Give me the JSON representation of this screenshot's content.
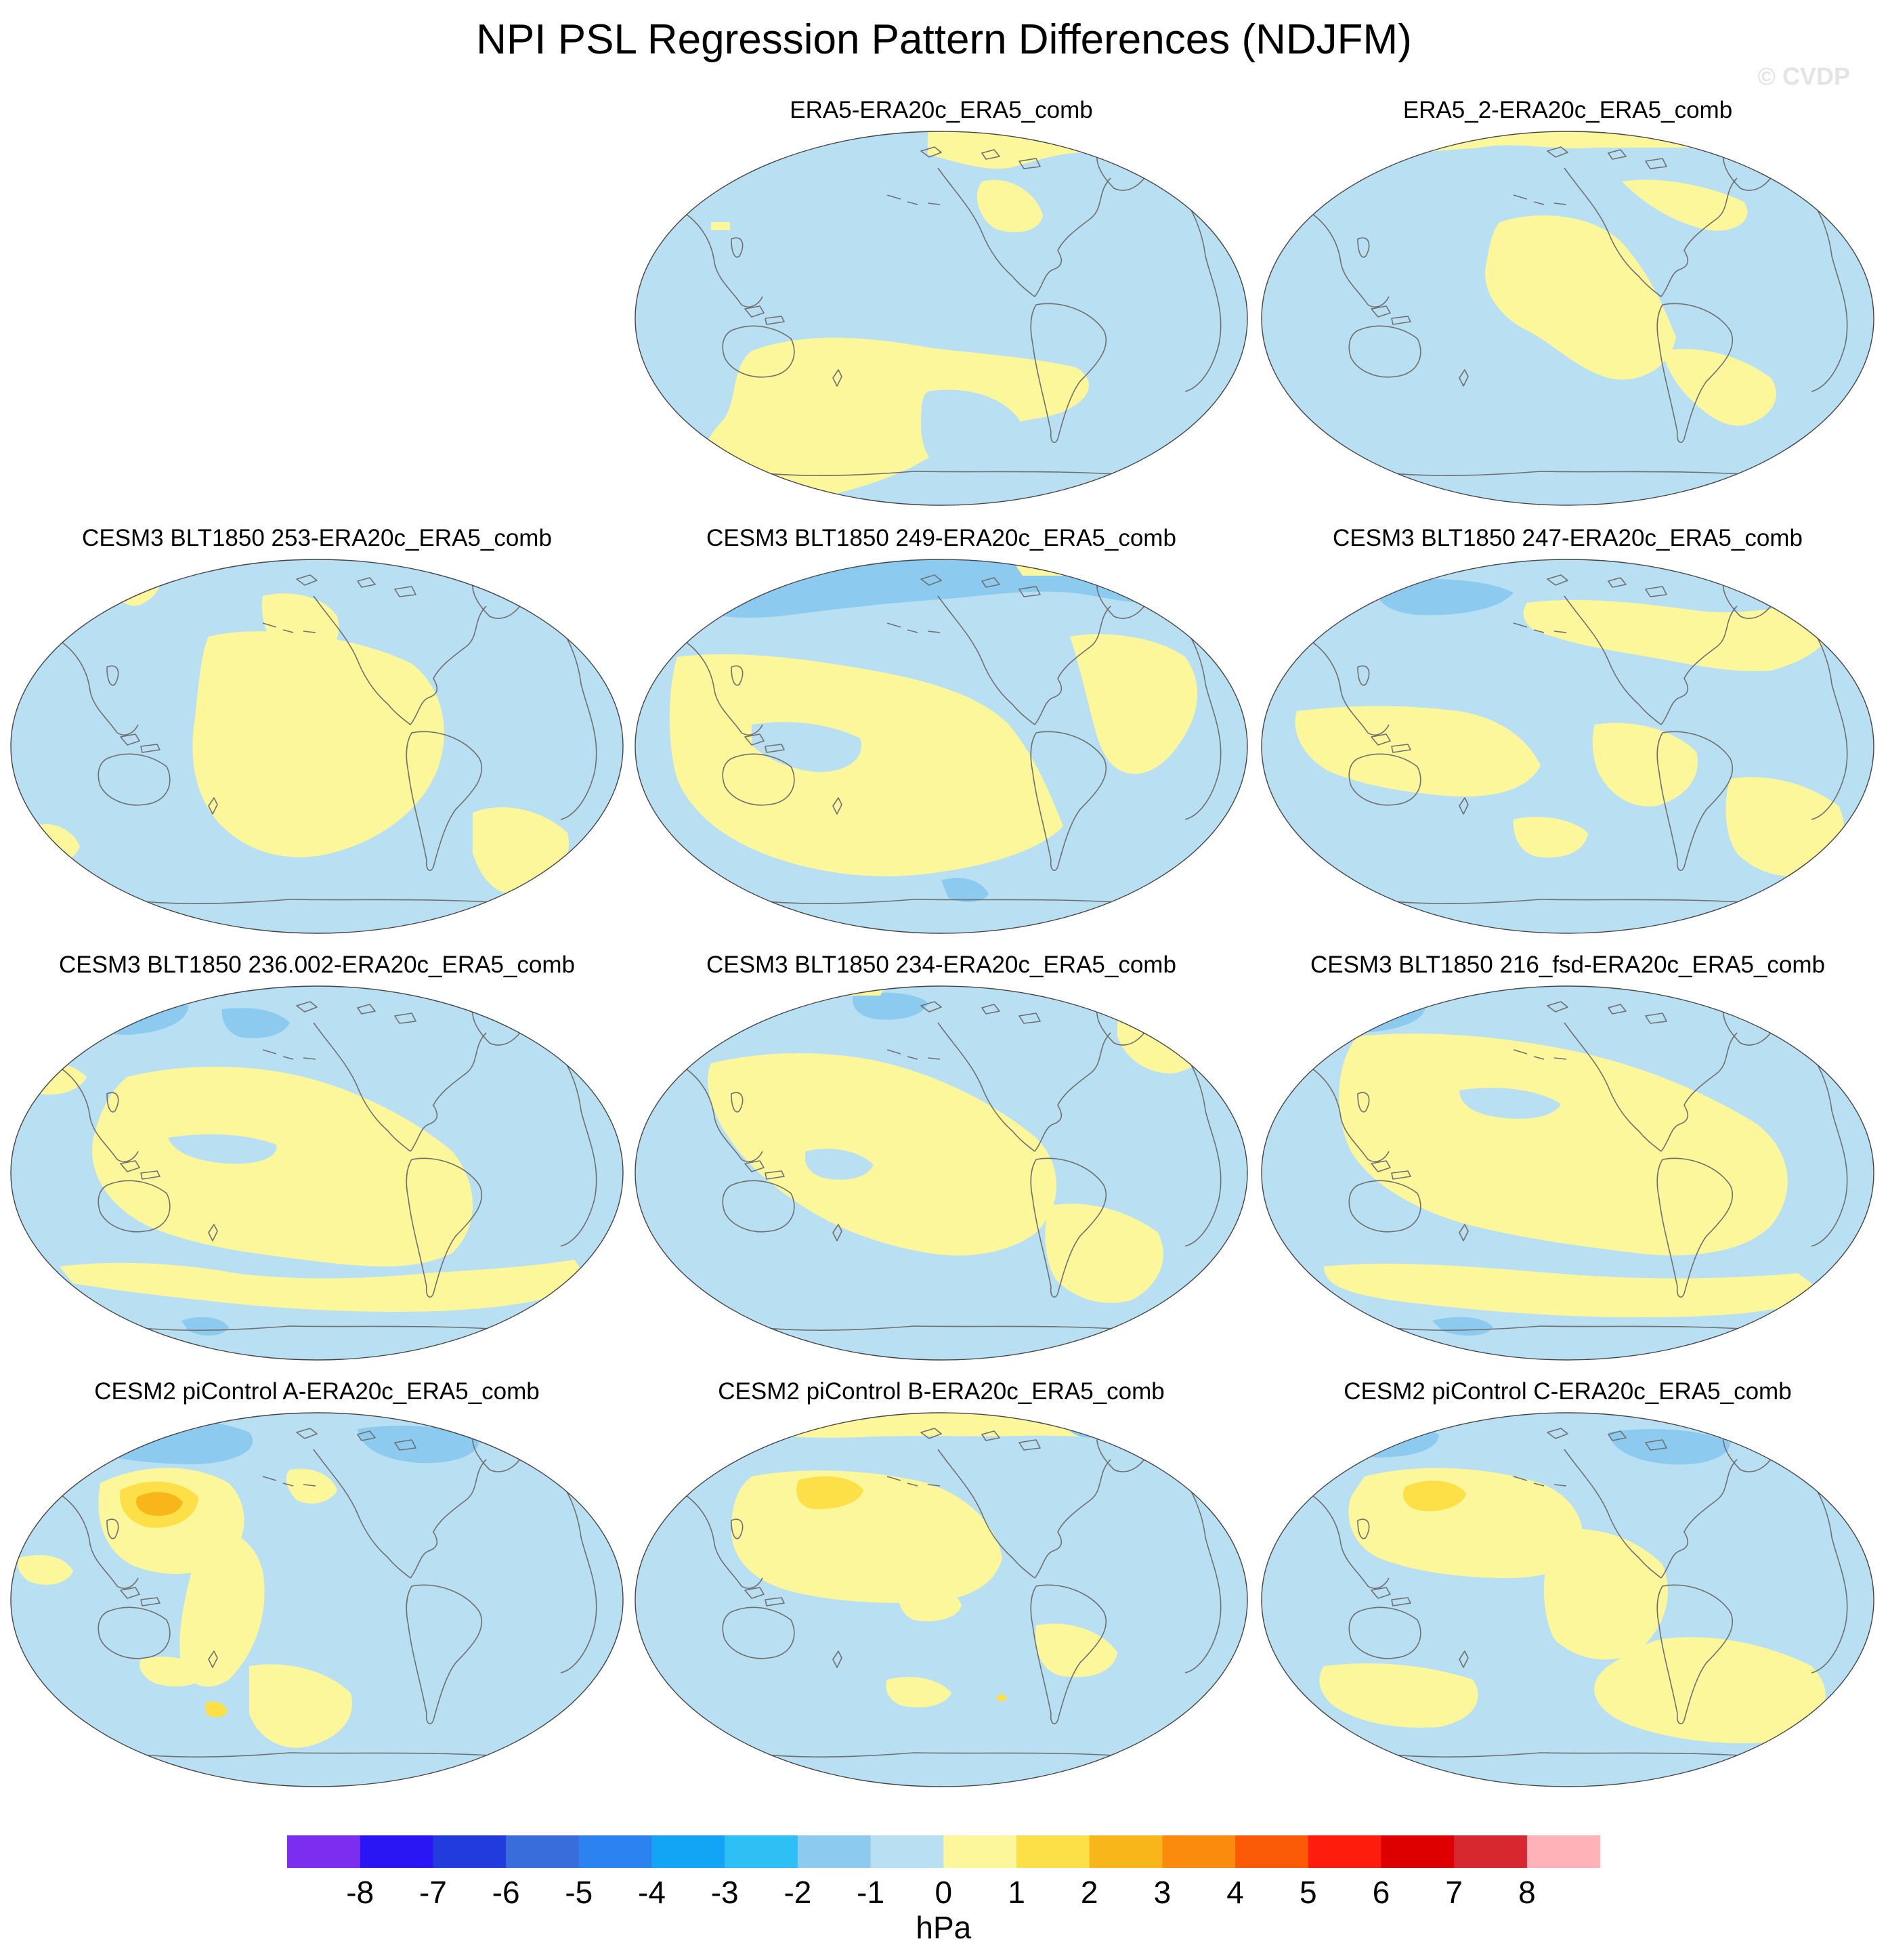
{
  "title": "NPI PSL Regression Pattern Differences (NDJFM)",
  "watermark": "© CVDP",
  "colors": {
    "neg": "#b9e0f2",
    "pos": "#fdf79c",
    "pos2": "#fde047",
    "pos3": "#f9b61b",
    "neg2": "#8ccaef",
    "neg3": "#6eb5e8",
    "coast": "#6f6f6f",
    "outline": "#444444"
  },
  "panels": [
    {
      "id": "p1",
      "title": "ERA5-ERA20c_ERA5_comb"
    },
    {
      "id": "p2",
      "title": "ERA5_2-ERA20c_ERA5_comb"
    },
    {
      "id": "p3",
      "title": "CESM3 BLT1850 253-ERA20c_ERA5_comb"
    },
    {
      "id": "p4",
      "title": "CESM3 BLT1850 249-ERA20c_ERA5_comb"
    },
    {
      "id": "p5",
      "title": "CESM3 BLT1850 247-ERA20c_ERA5_comb"
    },
    {
      "id": "p6",
      "title": "CESM3 BLT1850 236.002-ERA20c_ERA5_comb"
    },
    {
      "id": "p7",
      "title": "CESM3 BLT1850 234-ERA20c_ERA5_comb"
    },
    {
      "id": "p8",
      "title": "CESM3 BLT1850 216_fsd-ERA20c_ERA5_comb"
    },
    {
      "id": "p9",
      "title": "CESM2 piControl A-ERA20c_ERA5_comb"
    },
    {
      "id": "p10",
      "title": "CESM2 piControl B-ERA20c_ERA5_comb"
    },
    {
      "id": "p11",
      "title": "CESM2 piControl C-ERA20c_ERA5_comb"
    }
  ],
  "chart_data": {
    "type": "map-panels",
    "projection": "Robinson-like global, Pacific-centered",
    "variable": "PSL regression difference",
    "units": "hPa",
    "colorbar": {
      "label": "hPa",
      "levels": [
        -8,
        -7,
        -6,
        -5,
        -4,
        -3,
        -2,
        -1,
        0,
        1,
        2,
        3,
        4,
        5,
        6,
        7,
        8
      ],
      "tick_labels": [
        "-8",
        "-7",
        "-6",
        "-5",
        "-4",
        "-3",
        "-2",
        "-1",
        "0",
        "1",
        "2",
        "3",
        "4",
        "5",
        "6",
        "7",
        "8"
      ],
      "colors": [
        "#7b2df0",
        "#2a15f5",
        "#213bdc",
        "#3a6ddc",
        "#2b82f0",
        "#12a5f6",
        "#2ec0f5",
        "#8ccaef",
        "#b9e0f2",
        "#fdf79c",
        "#fde047",
        "#f9b61b",
        "#fa8b0c",
        "#fb5a06",
        "#fe1d0c",
        "#de0000",
        "#d8282f",
        "#ffb3b8"
      ]
    }
  }
}
